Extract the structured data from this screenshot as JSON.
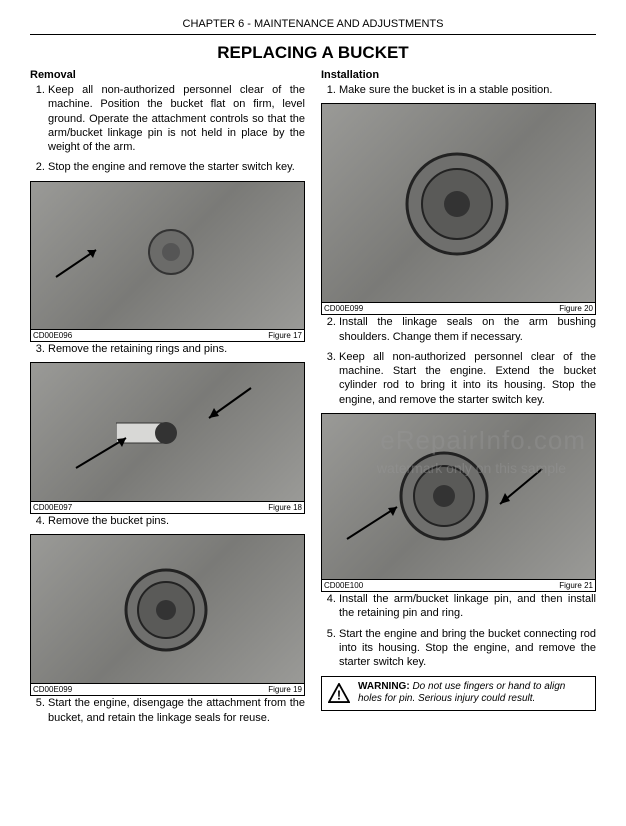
{
  "chapter_header": "CHAPTER 6 - MAINTENANCE AND ADJUSTMENTS",
  "main_title": "REPLACING A BUCKET",
  "left": {
    "section_head": "Removal",
    "steps_a": [
      "Keep all non-authorized personnel clear of the machine. Position the bucket flat on firm, level ground. Operate the attachment controls so that the arm/bucket linkage pin is not held in place by the weight of the arm.",
      "Stop the engine and remove the starter switch key."
    ],
    "fig17": {
      "code": "CD00E096",
      "label": "Figure 17",
      "height": 147
    },
    "step3": "Remove the retaining rings and pins.",
    "fig18": {
      "code": "CD00E097",
      "label": "Figure 18",
      "height": 138
    },
    "step4": "Remove the bucket pins.",
    "fig19": {
      "code": "CD00E099",
      "label": "Figure 19",
      "height": 148
    },
    "step5": "Start the engine, disengage the attachment from the bucket, and retain the linkage seals for reuse."
  },
  "right": {
    "section_head": "Installation",
    "step1": "Make sure the bucket is in a stable position.",
    "fig20": {
      "code": "CD00E099",
      "label": "Figure 20",
      "height": 198
    },
    "steps_b": [
      "Install the linkage seals on the arm bushing shoulders. Change them if necessary.",
      "Keep all non-authorized personnel clear of the machine. Start the engine. Extend the bucket cylinder rod to bring it into its housing. Stop the engine, and remove the starter switch key."
    ],
    "fig21": {
      "code": "CD00E100",
      "label": "Figure 21",
      "height": 165
    },
    "steps_c": [
      "Install the arm/bucket linkage pin, and then install the retaining pin and ring.",
      "Start the engine and bring the bucket connecting rod into its housing. Stop the engine, and remove the starter switch key."
    ],
    "warning_label": "WARNING:",
    "warning_text": " Do not use fingers or hand to align holes for pin. Serious injury could result."
  },
  "watermark1": "eRepairInfo.com",
  "watermark2": "watermark only on this sample",
  "figure_bg": "#8a8a88",
  "arrow_color": "#000000"
}
